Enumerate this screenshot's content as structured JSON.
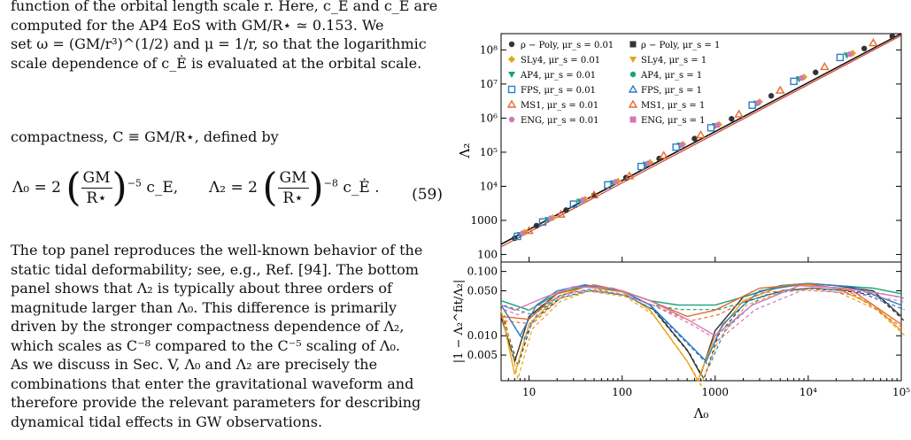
{
  "text": {
    "p1_lines": [
      "function of the orbital length scale r. Here, c_E and c_Ė are",
      "computed for the AP4 EoS with GM/R⋆ ≃ 0.153. We",
      "set ω = (GM/r³)^(1/2) and μ = 1/r, so that the logarithmic",
      "scale dependence of c_Ė is evaluated at the orbital scale."
    ],
    "p2": "compactness, C ≡ GM/R⋆, defined by",
    "eq_left": "Λ₀ = 2",
    "eq_left_exp": "−5",
    "eq_left_tail": "c_E,",
    "eq_right": "Λ₂ = 2",
    "eq_right_exp": "−8",
    "eq_right_tail": "c_Ė .",
    "frac_num": "GM",
    "frac_den": "R⋆",
    "eq_number": "(59)",
    "p3_lines": [
      "The top panel reproduces the well-known behavior of the",
      "static tidal deformability; see, e.g., Ref. [94]. The bottom",
      "panel shows that Λ₂ is typically about three orders of",
      "magnitude larger than Λ₀. This difference is primarily",
      "driven by the stronger compactness dependence of Λ₂,",
      "which scales as C⁻⁸ compared to the C⁻⁵ scaling of Λ₀.",
      "As we discuss in Sec. V, Λ₀ and Λ₂ are precisely the",
      "combinations that enter the gravitational waveform and",
      "therefore provide the relevant parameters for describing",
      "dynamical tidal effects in GW observations."
    ]
  },
  "chart_data": {
    "type": "scatter",
    "title": "",
    "xlabel": "Λ₀",
    "ylabel_top": "Λ₂",
    "ylabel_bottom": "|1 − Λ₂^fit/Λ₂|",
    "x_scale": "log",
    "xlim": [
      5,
      100000
    ],
    "x_ticks": [
      "10",
      "100",
      "1000",
      "10⁴",
      "10⁵"
    ],
    "top_panel": {
      "y_scale": "log",
      "ylim": [
        60,
        300000000
      ],
      "y_ticks": [
        "100",
        "1000",
        "10⁴",
        "10⁵",
        "10⁶",
        "10⁷",
        "10⁸"
      ],
      "fit_line": {
        "x": [
          5,
          100000
        ],
        "y": [
          200,
          300000000
        ]
      }
    },
    "bottom_panel": {
      "y_scale": "log",
      "ylim": [
        0.002,
        0.14
      ],
      "y_ticks": [
        "0.005",
        "0.010",
        "0.050",
        "0.100"
      ]
    },
    "legend_placement": "top-left",
    "legend": [
      [
        "ρ − Poly, μr_s = 0.01",
        "ρ − Poly, μr_s = 1"
      ],
      [
        "SLy4, μr_s = 0.01",
        "SLy4, μr_s = 1"
      ],
      [
        "AP4, μr_s = 0.01",
        "AP4, μr_s = 1"
      ],
      [
        "FPS, μr_s = 0.01",
        "FPS, μr_s = 1"
      ],
      [
        "MS1, μr_s = 0.01",
        "MS1, μr_s = 1"
      ],
      [
        "ENG, μr_s = 0.01",
        "ENG, μr_s = 1"
      ]
    ],
    "series_colors": [
      "#333333",
      "#e8a317",
      "#1aa37a",
      "#2d7dc4",
      "#e36a2e",
      "#d277b8"
    ],
    "series": [
      {
        "name": "ρ − Poly",
        "x": [
          7,
          12,
          25,
          50,
          110,
          250,
          600,
          1500,
          4000,
          12000,
          40000,
          80000
        ],
        "y": [
          300,
          700,
          2000,
          5500,
          18000,
          65000,
          250000,
          950000,
          4500000,
          22000000,
          110000000,
          250000000
        ]
      },
      {
        "name": "SLy4",
        "x": [
          9,
          18,
          40,
          90,
          200,
          450,
          1100,
          3000,
          9000,
          30000
        ],
        "y": [
          450,
          1200,
          4200,
          14000,
          50000,
          170000,
          650000,
          3000000,
          16000000,
          80000000
        ]
      },
      {
        "name": "AP4",
        "x": [
          8,
          16,
          35,
          80,
          180,
          420,
          1000,
          2800,
          8000,
          26000
        ],
        "y": [
          380,
          1050,
          3600,
          12500,
          44000,
          160000,
          600000,
          2700000,
          14000000,
          70000000
        ]
      },
      {
        "name": "FPS",
        "x": [
          7.5,
          14,
          30,
          70,
          160,
          380,
          900,
          2500,
          7000,
          22000
        ],
        "y": [
          340,
          900,
          3000,
          11000,
          38000,
          140000,
          520000,
          2400000,
          12000000,
          60000000
        ]
      },
      {
        "name": "MS1",
        "x": [
          10,
          22,
          50,
          120,
          280,
          700,
          1800,
          5000,
          15000,
          50000
        ],
        "y": [
          500,
          1500,
          5500,
          20000,
          80000,
          320000,
          1300000,
          6500000,
          32000000,
          160000000
        ]
      },
      {
        "name": "ENG",
        "x": [
          8.5,
          17,
          38,
          85,
          190,
          440,
          1050,
          2900,
          8500,
          28000
        ],
        "y": [
          420,
          1150,
          4000,
          13500,
          47000,
          165000,
          620000,
          2800000,
          15000000,
          75000000
        ]
      }
    ],
    "residual_curves": [
      {
        "color": "#333333",
        "x": [
          5,
          7,
          10,
          20,
          40,
          100,
          200,
          500,
          700,
          1000,
          2000,
          5000,
          10000,
          20000,
          50000,
          100000
        ],
        "y": [
          0.02,
          0.004,
          0.02,
          0.045,
          0.06,
          0.05,
          0.03,
          0.006,
          0.0025,
          0.012,
          0.04,
          0.06,
          0.065,
          0.06,
          0.05,
          0.02
        ]
      },
      {
        "color": "#e8a317",
        "x": [
          5,
          7,
          10,
          20,
          40,
          100,
          200,
          500,
          650,
          1000,
          2000,
          5000,
          10000,
          20000,
          50000,
          100000
        ],
        "y": [
          0.025,
          0.0025,
          0.015,
          0.04,
          0.058,
          0.048,
          0.025,
          0.004,
          0.002,
          0.01,
          0.035,
          0.058,
          0.062,
          0.055,
          0.03,
          0.012
        ]
      },
      {
        "color": "#1aa37a",
        "x": [
          5,
          10,
          20,
          40,
          100,
          200,
          400,
          1000,
          2000,
          5000,
          10000,
          20000,
          50000,
          100000
        ],
        "y": [
          0.035,
          0.025,
          0.045,
          0.06,
          0.05,
          0.035,
          0.03,
          0.03,
          0.04,
          0.06,
          0.065,
          0.06,
          0.055,
          0.045
        ]
      },
      {
        "color": "#2d7dc4",
        "x": [
          5,
          8,
          12,
          20,
          40,
          100,
          200,
          500,
          800,
          1200,
          3000,
          10000,
          30000,
          100000
        ],
        "y": [
          0.03,
          0.01,
          0.03,
          0.05,
          0.062,
          0.05,
          0.03,
          0.008,
          0.004,
          0.015,
          0.05,
          0.065,
          0.058,
          0.03
        ]
      },
      {
        "color": "#e36a2e",
        "x": [
          5,
          10,
          20,
          50,
          100,
          200,
          500,
          1000,
          3000,
          10000,
          30000,
          100000
        ],
        "y": [
          0.02,
          0.018,
          0.045,
          0.062,
          0.05,
          0.035,
          0.02,
          0.025,
          0.055,
          0.064,
          0.05,
          0.015
        ]
      },
      {
        "color": "#d277b8",
        "x": [
          5,
          7,
          15,
          30,
          80,
          200,
          500,
          1000,
          2500,
          8000,
          25000,
          100000
        ],
        "y": [
          0.03,
          0.025,
          0.04,
          0.058,
          0.055,
          0.035,
          0.018,
          0.01,
          0.03,
          0.06,
          0.055,
          0.04
        ]
      }
    ]
  }
}
